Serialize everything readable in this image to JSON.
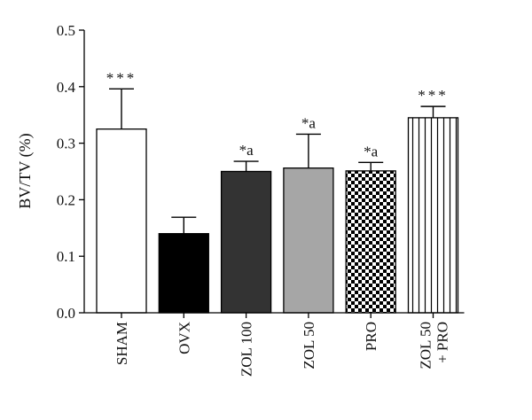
{
  "chart_data": {
    "type": "bar",
    "ylabel": "BV/TV (%)",
    "xlabel": "",
    "ylim": [
      0,
      0.5
    ],
    "yticks": [
      "0.0",
      "0.1",
      "0.2",
      "0.3",
      "0.4",
      "0.5"
    ],
    "grid": false,
    "categories": [
      {
        "line1": "SHAM",
        "line2": ""
      },
      {
        "line1": "OVX",
        "line2": ""
      },
      {
        "line1": "ZOL 100",
        "line2": ""
      },
      {
        "line1": "ZOL 50",
        "line2": ""
      },
      {
        "line1": "PRO",
        "line2": ""
      },
      {
        "line1": "ZOL 50",
        "line2": "+ PRO"
      }
    ],
    "series": [
      {
        "values": [
          0.325,
          0.14,
          0.25,
          0.256,
          0.251,
          0.345
        ],
        "errors": [
          0.071,
          0.029,
          0.018,
          0.06,
          0.015,
          0.02
        ],
        "annotations": [
          "***",
          "",
          "*a",
          "*a",
          "*a",
          "***"
        ],
        "fills": [
          "white",
          "black",
          "#333333",
          "#a6a6a6",
          "checker",
          "vstripes"
        ]
      }
    ]
  }
}
